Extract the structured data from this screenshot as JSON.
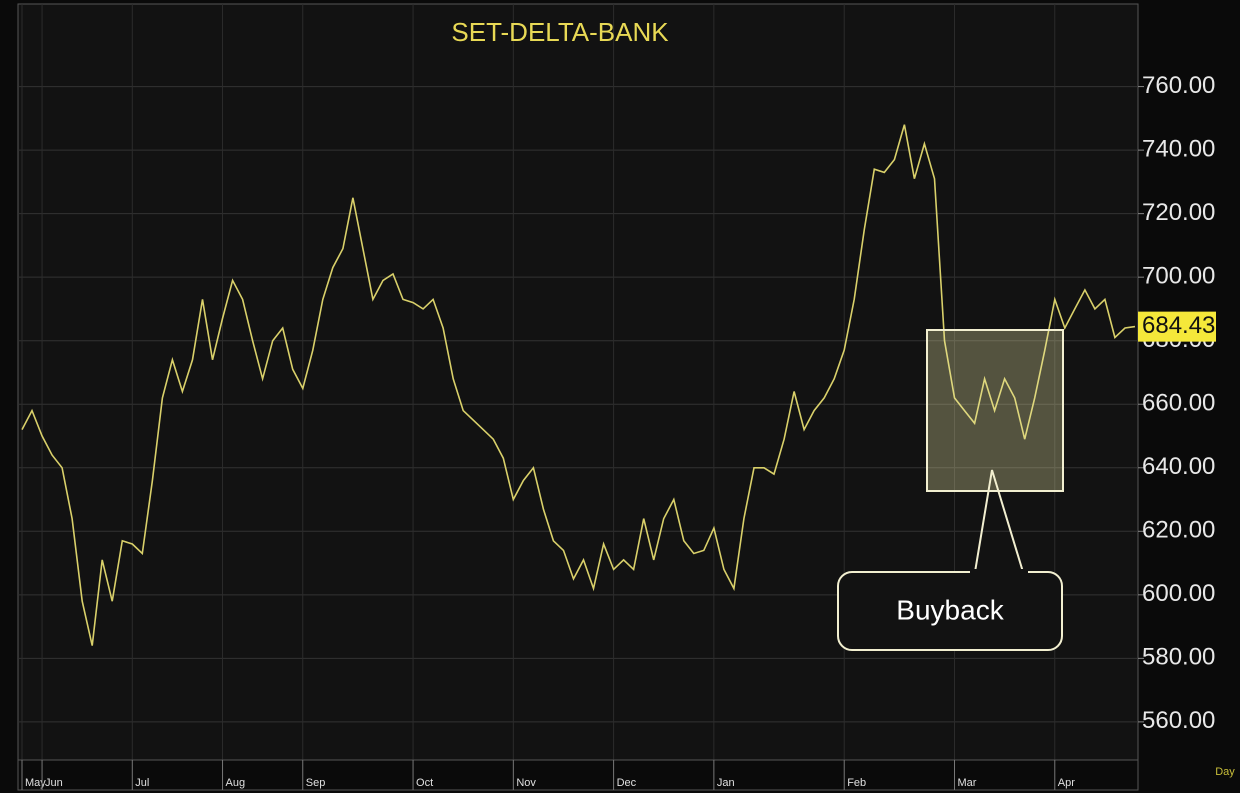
{
  "chart_data": {
    "type": "line",
    "title": "SET-DELTA-BANK",
    "annotation": "Buyback",
    "x_label": "Day",
    "color": "#d9d06a",
    "grid": true,
    "categories": [
      "May",
      null,
      "Jun",
      null,
      null,
      null,
      null,
      null,
      null,
      null,
      null,
      "Jul",
      null,
      null,
      null,
      null,
      null,
      null,
      null,
      null,
      "Aug",
      null,
      null,
      null,
      null,
      null,
      null,
      null,
      "Sep",
      null,
      null,
      null,
      null,
      null,
      null,
      null,
      null,
      null,
      null,
      "Oct",
      null,
      null,
      null,
      null,
      null,
      null,
      null,
      null,
      null,
      "Nov",
      null,
      null,
      null,
      null,
      null,
      null,
      null,
      null,
      null,
      "Dec",
      null,
      null,
      null,
      null,
      null,
      null,
      null,
      null,
      null,
      "Jan",
      null,
      null,
      null,
      null,
      null,
      null,
      null,
      null,
      null,
      null,
      null,
      null,
      "Feb",
      null,
      null,
      null,
      null,
      null,
      null,
      null,
      null,
      null,
      null,
      "Mar",
      null,
      null,
      null,
      null,
      null,
      null,
      null,
      null,
      null,
      "Apr",
      null,
      null,
      null,
      null,
      null,
      null,
      null,
      null
    ],
    "values": [
      652,
      658,
      650,
      644,
      640,
      624,
      598,
      584,
      611,
      598,
      617,
      616,
      613,
      636,
      662,
      674,
      664,
      674,
      693,
      674,
      687,
      699,
      693,
      680,
      668,
      680,
      684,
      671,
      665,
      677,
      693,
      703,
      709,
      725,
      709,
      693,
      699,
      701,
      693,
      692,
      690,
      693,
      684,
      668,
      658,
      655,
      652,
      649,
      643,
      630,
      636,
      640,
      627,
      617,
      614,
      605,
      611,
      602,
      616,
      608,
      611,
      608,
      624,
      611,
      624,
      630,
      617,
      613,
      614,
      621,
      608,
      602,
      624,
      640,
      640,
      638,
      649,
      664,
      652,
      658,
      662,
      668,
      677,
      693,
      715,
      734,
      733,
      737,
      748,
      731,
      742,
      731,
      680,
      662,
      658,
      654,
      668,
      658,
      668,
      662,
      649,
      662,
      677,
      693,
      684,
      690,
      696,
      690,
      693,
      681,
      684,
      684.43
    ],
    "ylim": [
      548,
      786
    ],
    "yticks": [
      {
        "value": 560,
        "label": "560.00"
      },
      {
        "value": 580,
        "label": "580.00"
      },
      {
        "value": 600,
        "label": "600.00"
      },
      {
        "value": 620,
        "label": "620.00"
      },
      {
        "value": 640,
        "label": "640.00"
      },
      {
        "value": 660,
        "label": "660.00"
      },
      {
        "value": 680,
        "label": "680.00"
      },
      {
        "value": 700,
        "label": "700.00"
      },
      {
        "value": 720,
        "label": "720.00"
      },
      {
        "value": 740,
        "label": "740.00"
      },
      {
        "value": 760,
        "label": "760.00"
      }
    ]
  }
}
